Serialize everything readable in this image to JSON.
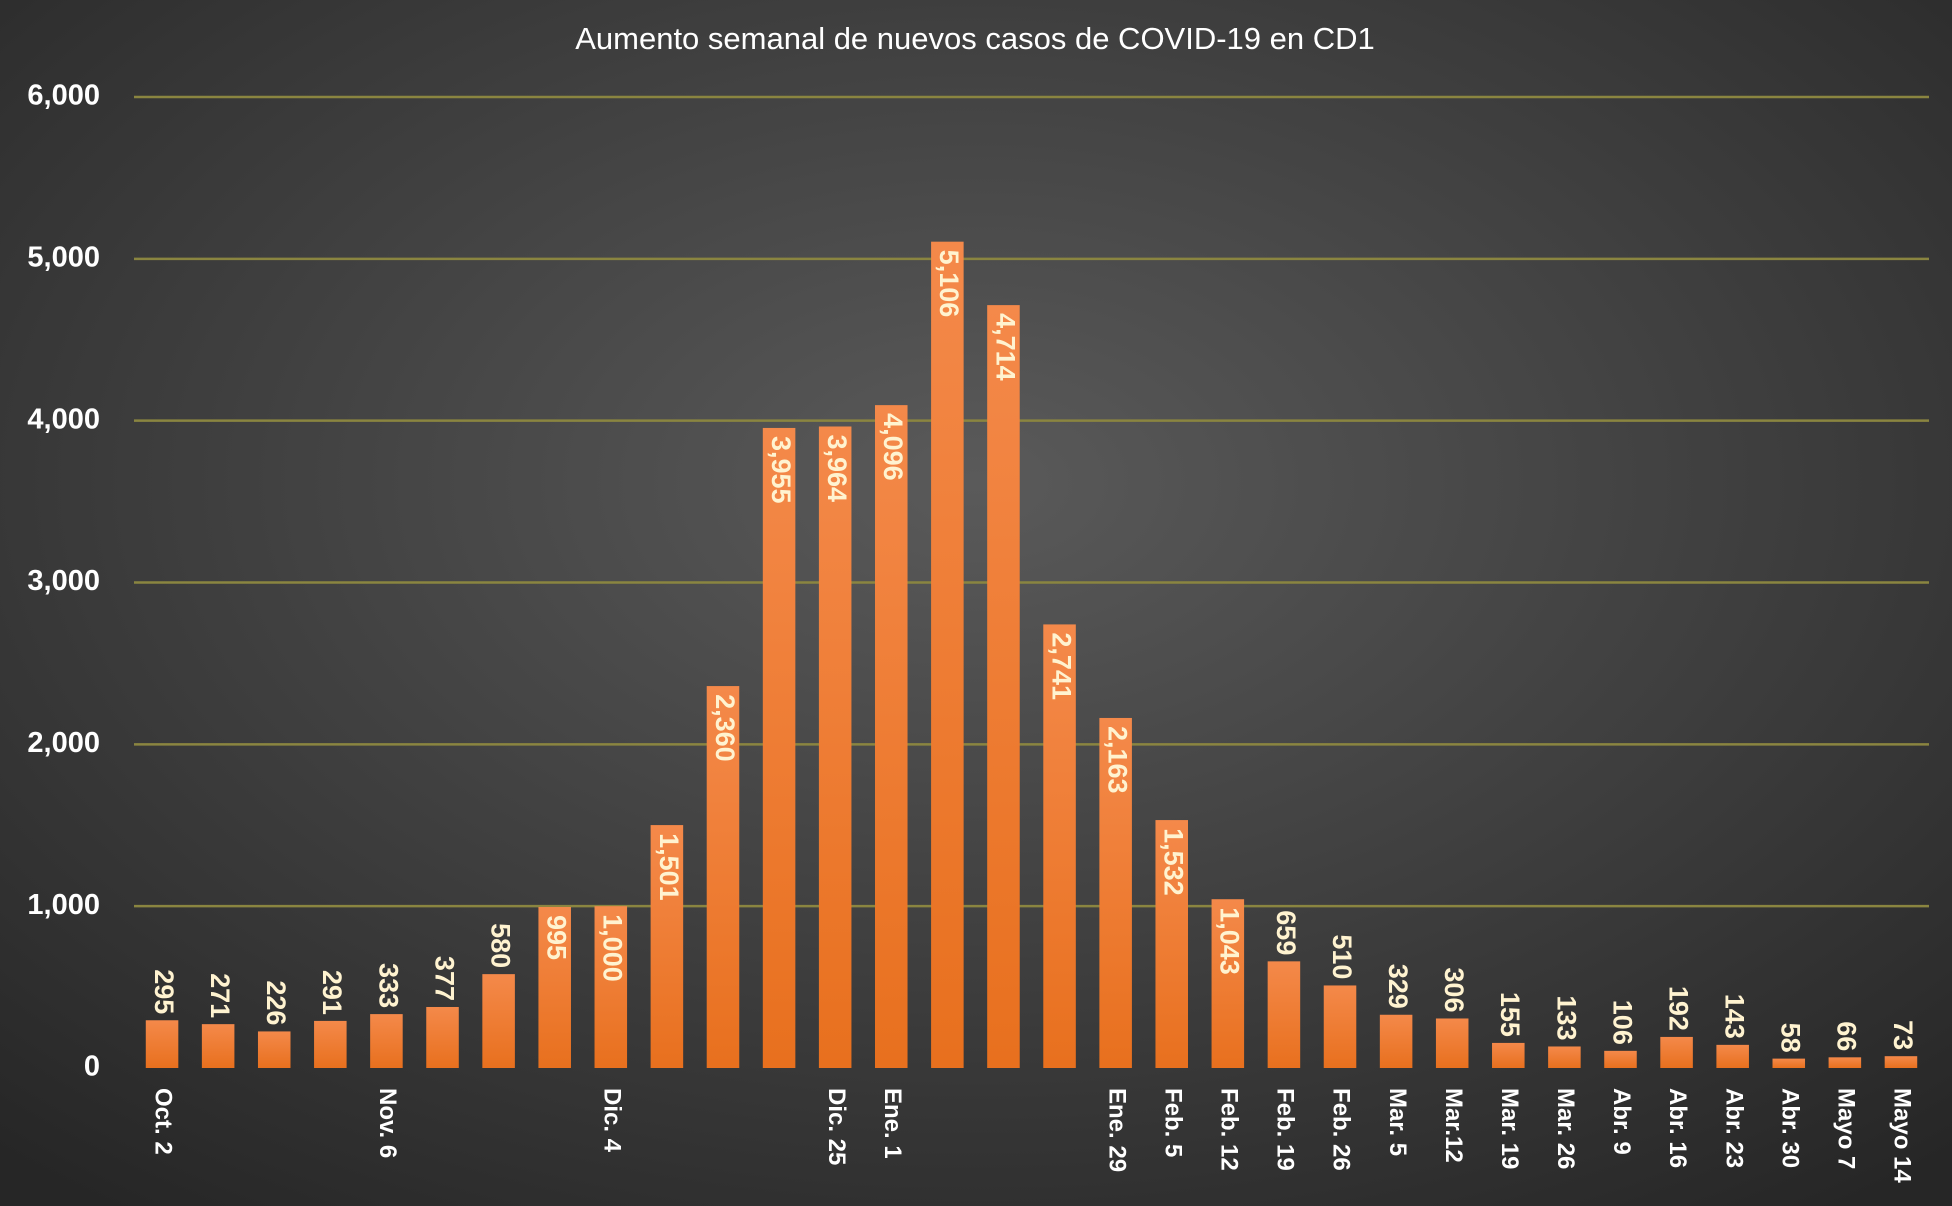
{
  "chart_data": {
    "type": "bar",
    "title": "Aumento semanal de nuevos casos de COVID-19 en CD1",
    "categories": [
      "Oct. 2",
      null,
      null,
      null,
      "Nov. 6",
      null,
      null,
      null,
      "Dic. 4",
      null,
      null,
      null,
      "Dic. 25",
      "Ene. 1",
      null,
      null,
      null,
      "Ene. 29",
      "Feb. 5",
      "Feb. 12",
      "Feb. 19",
      "Feb. 26",
      "Mar. 5",
      "Mar.12",
      "Mar. 19",
      "Mar. 26",
      "Abr. 9",
      "Abr. 16",
      "Abr. 23",
      "Abr. 30",
      "Mayo 7",
      "Mayo 14"
    ],
    "values": [
      295,
      271,
      226,
      291,
      333,
      377,
      580,
      995,
      1000,
      1501,
      2360,
      3955,
      3964,
      4096,
      5106,
      4714,
      2741,
      2163,
      1532,
      1043,
      659,
      510,
      329,
      306,
      155,
      133,
      106,
      192,
      143,
      58,
      66,
      73
    ],
    "value_labels": [
      "295",
      "271",
      "226",
      "291",
      "333",
      "377",
      "580",
      "995",
      "1,000",
      "1,501",
      "2,360",
      "3,955",
      "3,964",
      "4,096",
      "5,106",
      "4,714",
      "2,741",
      "2,163",
      "1,532",
      "1,043",
      "659",
      "510",
      "329",
      "306",
      "155",
      "133",
      "106",
      "192",
      "143",
      "58",
      "66",
      "73"
    ],
    "color": "#ee7b30",
    "ylim": [
      0,
      6000
    ],
    "yticks": [
      0,
      {
        "value": 1000,
        "label": "1,000"
      },
      {
        "value": 2000,
        "label": "2,000"
      },
      {
        "value": 3000,
        "label": "3,000"
      },
      {
        "value": 4000,
        "label": "4,000"
      },
      {
        "value": 5000,
        "label": "5,000"
      },
      {
        "value": 6000,
        "label": "6,000"
      }
    ],
    "grid": true
  }
}
